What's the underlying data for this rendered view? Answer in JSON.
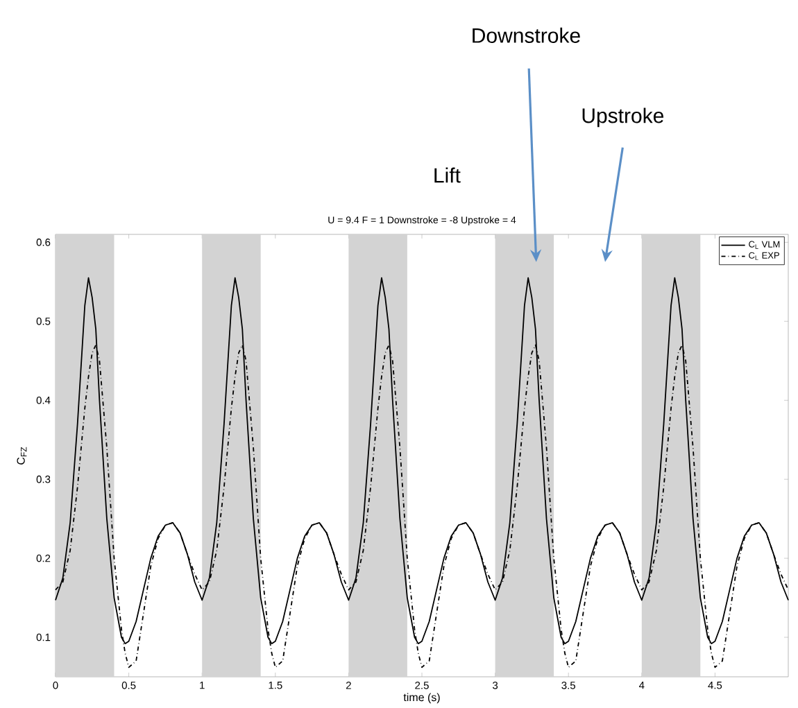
{
  "chart_data": {
    "type": "line",
    "title": "U = 9.4 F = 1 Downstroke = -8 Upstroke = 4",
    "xlabel": "time (s)",
    "ylabel": "C$_{FZ}$",
    "x": [
      0,
      0.05,
      0.1,
      0.15,
      0.2,
      0.225,
      0.25,
      0.275,
      0.3,
      0.35,
      0.4,
      0.45,
      0.475,
      0.5,
      0.55,
      0.6,
      0.65,
      0.7,
      0.75,
      0.8,
      0.85,
      0.9,
      0.95,
      1,
      1.05,
      1.1,
      1.15,
      1.2,
      1.225,
      1.25,
      1.275,
      1.3,
      1.35,
      1.4,
      1.45,
      1.475,
      1.5,
      1.55,
      1.6,
      1.65,
      1.7,
      1.75,
      1.8,
      1.85,
      1.9,
      1.95,
      2,
      2.05,
      2.1,
      2.15,
      2.2,
      2.225,
      2.25,
      2.275,
      2.3,
      2.35,
      2.4,
      2.45,
      2.475,
      2.5,
      2.55,
      2.6,
      2.65,
      2.7,
      2.75,
      2.8,
      2.85,
      2.9,
      2.95,
      3,
      3.05,
      3.1,
      3.15,
      3.2,
      3.225,
      3.25,
      3.275,
      3.3,
      3.35,
      3.4,
      3.45,
      3.475,
      3.5,
      3.55,
      3.6,
      3.65,
      3.7,
      3.75,
      3.8,
      3.85,
      3.9,
      3.95,
      4,
      4.05,
      4.1,
      4.15,
      4.2,
      4.225,
      4.25,
      4.275,
      4.3,
      4.35,
      4.4,
      4.45,
      4.475,
      4.5,
      4.55,
      4.6,
      4.65,
      4.7,
      4.75,
      4.8,
      4.85,
      4.9,
      4.95,
      5
    ],
    "series": [
      {
        "name": "C$_{L}$ VLM",
        "color": "#000000",
        "line_style": "solid",
        "values": [
          0.147,
          0.175,
          0.245,
          0.37,
          0.52,
          0.555,
          0.53,
          0.49,
          0.4,
          0.25,
          0.15,
          0.1,
          0.092,
          0.095,
          0.12,
          0.16,
          0.2,
          0.228,
          0.242,
          0.245,
          0.232,
          0.205,
          0.17,
          0.147,
          0.175,
          0.245,
          0.37,
          0.52,
          0.555,
          0.53,
          0.49,
          0.4,
          0.25,
          0.15,
          0.1,
          0.092,
          0.095,
          0.12,
          0.16,
          0.2,
          0.228,
          0.242,
          0.245,
          0.232,
          0.205,
          0.17,
          0.147,
          0.175,
          0.245,
          0.37,
          0.52,
          0.555,
          0.53,
          0.49,
          0.4,
          0.25,
          0.15,
          0.1,
          0.092,
          0.095,
          0.12,
          0.16,
          0.2,
          0.228,
          0.242,
          0.245,
          0.232,
          0.205,
          0.17,
          0.147,
          0.175,
          0.245,
          0.37,
          0.52,
          0.555,
          0.53,
          0.49,
          0.4,
          0.25,
          0.15,
          0.1,
          0.092,
          0.095,
          0.12,
          0.16,
          0.2,
          0.228,
          0.242,
          0.245,
          0.232,
          0.205,
          0.17,
          0.147,
          0.175,
          0.245,
          0.37,
          0.52,
          0.555,
          0.53,
          0.49,
          0.4,
          0.25,
          0.15,
          0.1,
          0.092,
          0.095,
          0.12,
          0.16,
          0.2,
          0.228,
          0.242,
          0.245,
          0.232,
          0.205,
          0.17,
          0.147
        ]
      },
      {
        "name": "C$_{L}$ EXP",
        "color": "#000000",
        "line_style": "dashdot",
        "values": [
          0.16,
          0.17,
          0.21,
          0.29,
          0.39,
          0.43,
          0.46,
          0.47,
          0.45,
          0.34,
          0.2,
          0.11,
          0.08,
          0.062,
          0.07,
          0.13,
          0.19,
          0.225,
          0.242,
          0.245,
          0.232,
          0.205,
          0.18,
          0.16,
          0.17,
          0.21,
          0.29,
          0.39,
          0.43,
          0.46,
          0.47,
          0.45,
          0.34,
          0.2,
          0.11,
          0.08,
          0.062,
          0.07,
          0.13,
          0.19,
          0.225,
          0.242,
          0.245,
          0.232,
          0.205,
          0.18,
          0.16,
          0.17,
          0.21,
          0.29,
          0.39,
          0.43,
          0.46,
          0.47,
          0.45,
          0.34,
          0.2,
          0.11,
          0.08,
          0.062,
          0.07,
          0.13,
          0.19,
          0.225,
          0.242,
          0.245,
          0.232,
          0.205,
          0.18,
          0.16,
          0.17,
          0.21,
          0.29,
          0.39,
          0.43,
          0.46,
          0.47,
          0.45,
          0.34,
          0.2,
          0.11,
          0.08,
          0.062,
          0.07,
          0.13,
          0.19,
          0.225,
          0.242,
          0.245,
          0.232,
          0.205,
          0.18,
          0.16,
          0.17,
          0.21,
          0.29,
          0.39,
          0.43,
          0.46,
          0.47,
          0.45,
          0.34,
          0.2,
          0.11,
          0.08,
          0.062,
          0.07,
          0.13,
          0.19,
          0.225,
          0.242,
          0.245,
          0.232,
          0.205,
          0.18,
          0.16
        ]
      }
    ],
    "xlim": [
      0,
      5
    ],
    "ylim": [
      0.05,
      0.61
    ],
    "xticks": [
      0,
      0.5,
      1,
      1.5,
      2,
      2.5,
      3,
      3.5,
      4,
      4.5
    ],
    "yticks": [
      0.1,
      0.2,
      0.3,
      0.4,
      0.5,
      0.6
    ],
    "grid": false,
    "legend": "top right",
    "bands": [
      {
        "axis": "x",
        "from": 0,
        "to": 0.4,
        "color": "#d3d3d3"
      },
      {
        "axis": "x",
        "from": 1,
        "to": 1.4,
        "color": "#d3d3d3"
      },
      {
        "axis": "x",
        "from": 2,
        "to": 2.4,
        "color": "#d3d3d3"
      },
      {
        "axis": "x",
        "from": 3,
        "to": 3.4,
        "color": "#d3d3d3"
      },
      {
        "axis": "x",
        "from": 4,
        "to": 4.4,
        "color": "#d3d3d3"
      }
    ],
    "annotations": [
      "Downstroke",
      "Upstroke",
      "Lift"
    ]
  }
}
